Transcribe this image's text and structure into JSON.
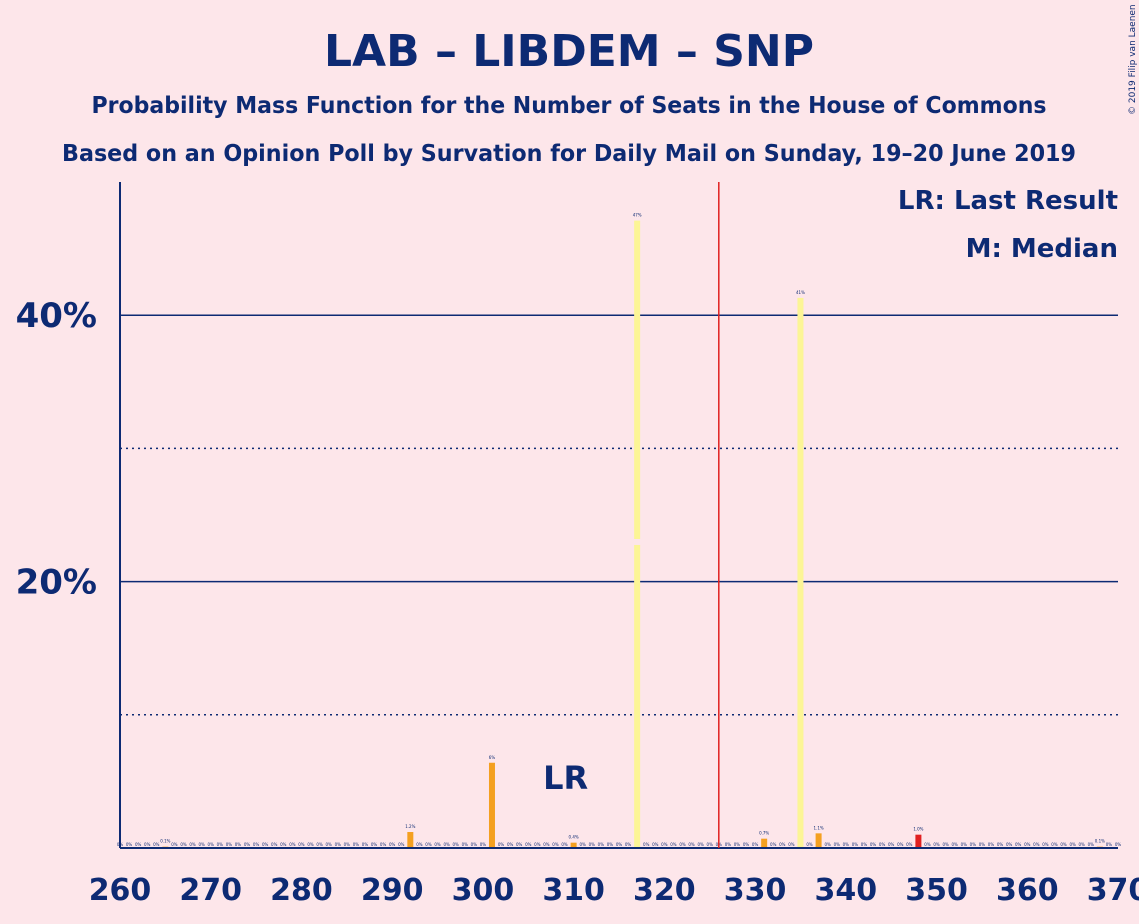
{
  "title": "LAB – LIBDEM – SNP",
  "subtitle": "Probability Mass Function for the Number of Seats in the House of Commons",
  "subtitle2": "Based on an Opinion Poll by Survation for Daily Mail on Sunday, 19–20 June 2019",
  "copyright": "© 2019 Filip van Laenen",
  "legend": {
    "lr": "LR: Last Result",
    "median": "M: Median"
  },
  "colors": {
    "background": "#FDE6EA",
    "axis": "#0D2A73",
    "bar_default": "#F4A020",
    "bar_median": "#FCF596",
    "bar_lr": "#E02020",
    "majority_line": "#E02020"
  },
  "chart_data": {
    "type": "bar",
    "xlim": [
      260,
      370
    ],
    "ylim": [
      0,
      50
    ],
    "x_ticks": [
      260,
      270,
      280,
      290,
      300,
      310,
      320,
      330,
      340,
      350,
      360,
      370
    ],
    "y_ticks_major": [
      20,
      40
    ],
    "y_tick_labels": [
      "20%",
      "40%"
    ],
    "y_gridlines_minor": [
      10,
      30
    ],
    "majority_line_x": 326,
    "last_result_seat": 310,
    "last_result_label": "LR",
    "median_seat": 317,
    "bars": [
      {
        "seat": 265,
        "value": 0.1,
        "label": "0.1%"
      },
      {
        "seat": 292,
        "value": 1.2,
        "label": "1.2%"
      },
      {
        "seat": 301,
        "value": 6.4,
        "label": "6%"
      },
      {
        "seat": 310,
        "value": 0.4,
        "label": "0.4%"
      },
      {
        "seat": 317,
        "value": 47.1,
        "label": "47%"
      },
      {
        "seat": 331,
        "value": 0.7,
        "label": "0.7%"
      },
      {
        "seat": 335,
        "value": 41.3,
        "label": "41%"
      },
      {
        "seat": 337,
        "value": 1.1,
        "label": "1.1%"
      },
      {
        "seat": 348,
        "value": 1.0,
        "label": "1.0%"
      },
      {
        "seat": 368,
        "value": 0.1,
        "label": "0.1%"
      }
    ],
    "zero_label": "0%"
  }
}
